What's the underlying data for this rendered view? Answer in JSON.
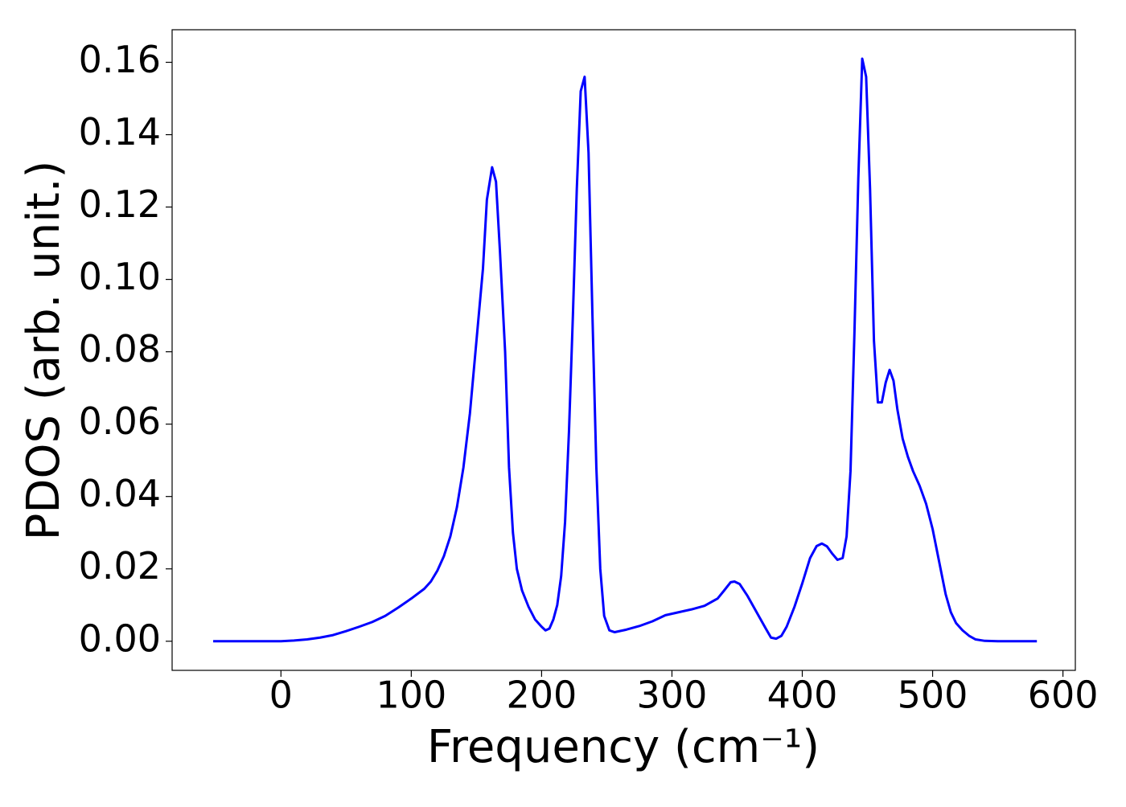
{
  "chart_data": {
    "type": "line",
    "x_label": "Frequency (cm⁻¹)",
    "y_label": "PDOS (arb. unit.)",
    "x": [
      -52,
      0,
      10,
      20,
      30,
      40,
      50,
      60,
      70,
      80,
      90,
      100,
      110,
      115,
      120,
      125,
      130,
      135,
      140,
      145,
      150,
      155,
      158,
      162,
      165,
      168,
      172,
      175,
      178,
      181,
      185,
      190,
      195,
      200,
      203,
      206,
      209,
      212,
      215,
      218,
      221,
      224,
      227,
      230,
      233,
      236,
      239,
      242,
      245,
      248,
      252,
      256,
      265,
      275,
      285,
      295,
      305,
      315,
      325,
      335,
      340,
      345,
      348,
      352,
      358,
      365,
      372,
      376,
      380,
      384,
      388,
      394,
      400,
      406,
      411,
      415,
      419,
      423,
      427,
      431,
      434,
      437,
      440,
      443,
      446,
      449,
      452,
      455,
      458,
      461,
      464,
      467,
      470,
      473,
      477,
      481,
      485,
      490,
      495,
      500,
      505,
      510,
      514,
      518,
      523,
      528,
      533,
      540,
      550,
      580
    ],
    "series": [
      {
        "name": "PDOS",
        "color": "#0000ff",
        "values": [
          0,
          0,
          0.0002,
          0.0005,
          0.001,
          0.0017,
          0.0028,
          0.004,
          0.0053,
          0.007,
          0.0093,
          0.0118,
          0.0145,
          0.0165,
          0.0195,
          0.0235,
          0.029,
          0.037,
          0.048,
          0.063,
          0.083,
          0.103,
          0.122,
          0.131,
          0.127,
          0.108,
          0.08,
          0.048,
          0.03,
          0.02,
          0.014,
          0.0095,
          0.006,
          0.004,
          0.003,
          0.0035,
          0.006,
          0.01,
          0.018,
          0.033,
          0.058,
          0.09,
          0.125,
          0.152,
          0.156,
          0.135,
          0.09,
          0.048,
          0.02,
          0.007,
          0.003,
          0.0025,
          0.0032,
          0.0042,
          0.0055,
          0.0072,
          0.008,
          0.0088,
          0.0098,
          0.0118,
          0.014,
          0.0163,
          0.0165,
          0.0158,
          0.0125,
          0.008,
          0.0035,
          0.001,
          0.0007,
          0.0015,
          0.004,
          0.0095,
          0.016,
          0.023,
          0.0263,
          0.027,
          0.0262,
          0.0242,
          0.0225,
          0.023,
          0.029,
          0.047,
          0.085,
          0.128,
          0.161,
          0.156,
          0.125,
          0.083,
          0.066,
          0.066,
          0.0715,
          0.075,
          0.072,
          0.064,
          0.056,
          0.051,
          0.047,
          0.043,
          0.038,
          0.031,
          0.022,
          0.013,
          0.008,
          0.005,
          0.003,
          0.0015,
          0.0005,
          0.0001,
          0,
          0
        ]
      }
    ],
    "xlim": [
      -83.5,
      609.5
    ],
    "ylim": [
      -0.00805,
      0.169
    ],
    "xticks": [
      0,
      100,
      200,
      300,
      400,
      500,
      600
    ],
    "yticks": [
      {
        "value": 0,
        "label": "0.00"
      },
      {
        "value": 0.02,
        "label": "0.02"
      },
      {
        "value": 0.04,
        "label": "0.04"
      },
      {
        "value": 0.06,
        "label": "0.06"
      },
      {
        "value": 0.08,
        "label": "0.08"
      },
      {
        "value": 0.1,
        "label": "0.10"
      },
      {
        "value": 0.12,
        "label": "0.12"
      },
      {
        "value": 0.14,
        "label": "0.14"
      },
      {
        "value": 0.16,
        "label": "0.16"
      }
    ],
    "grid": false
  }
}
